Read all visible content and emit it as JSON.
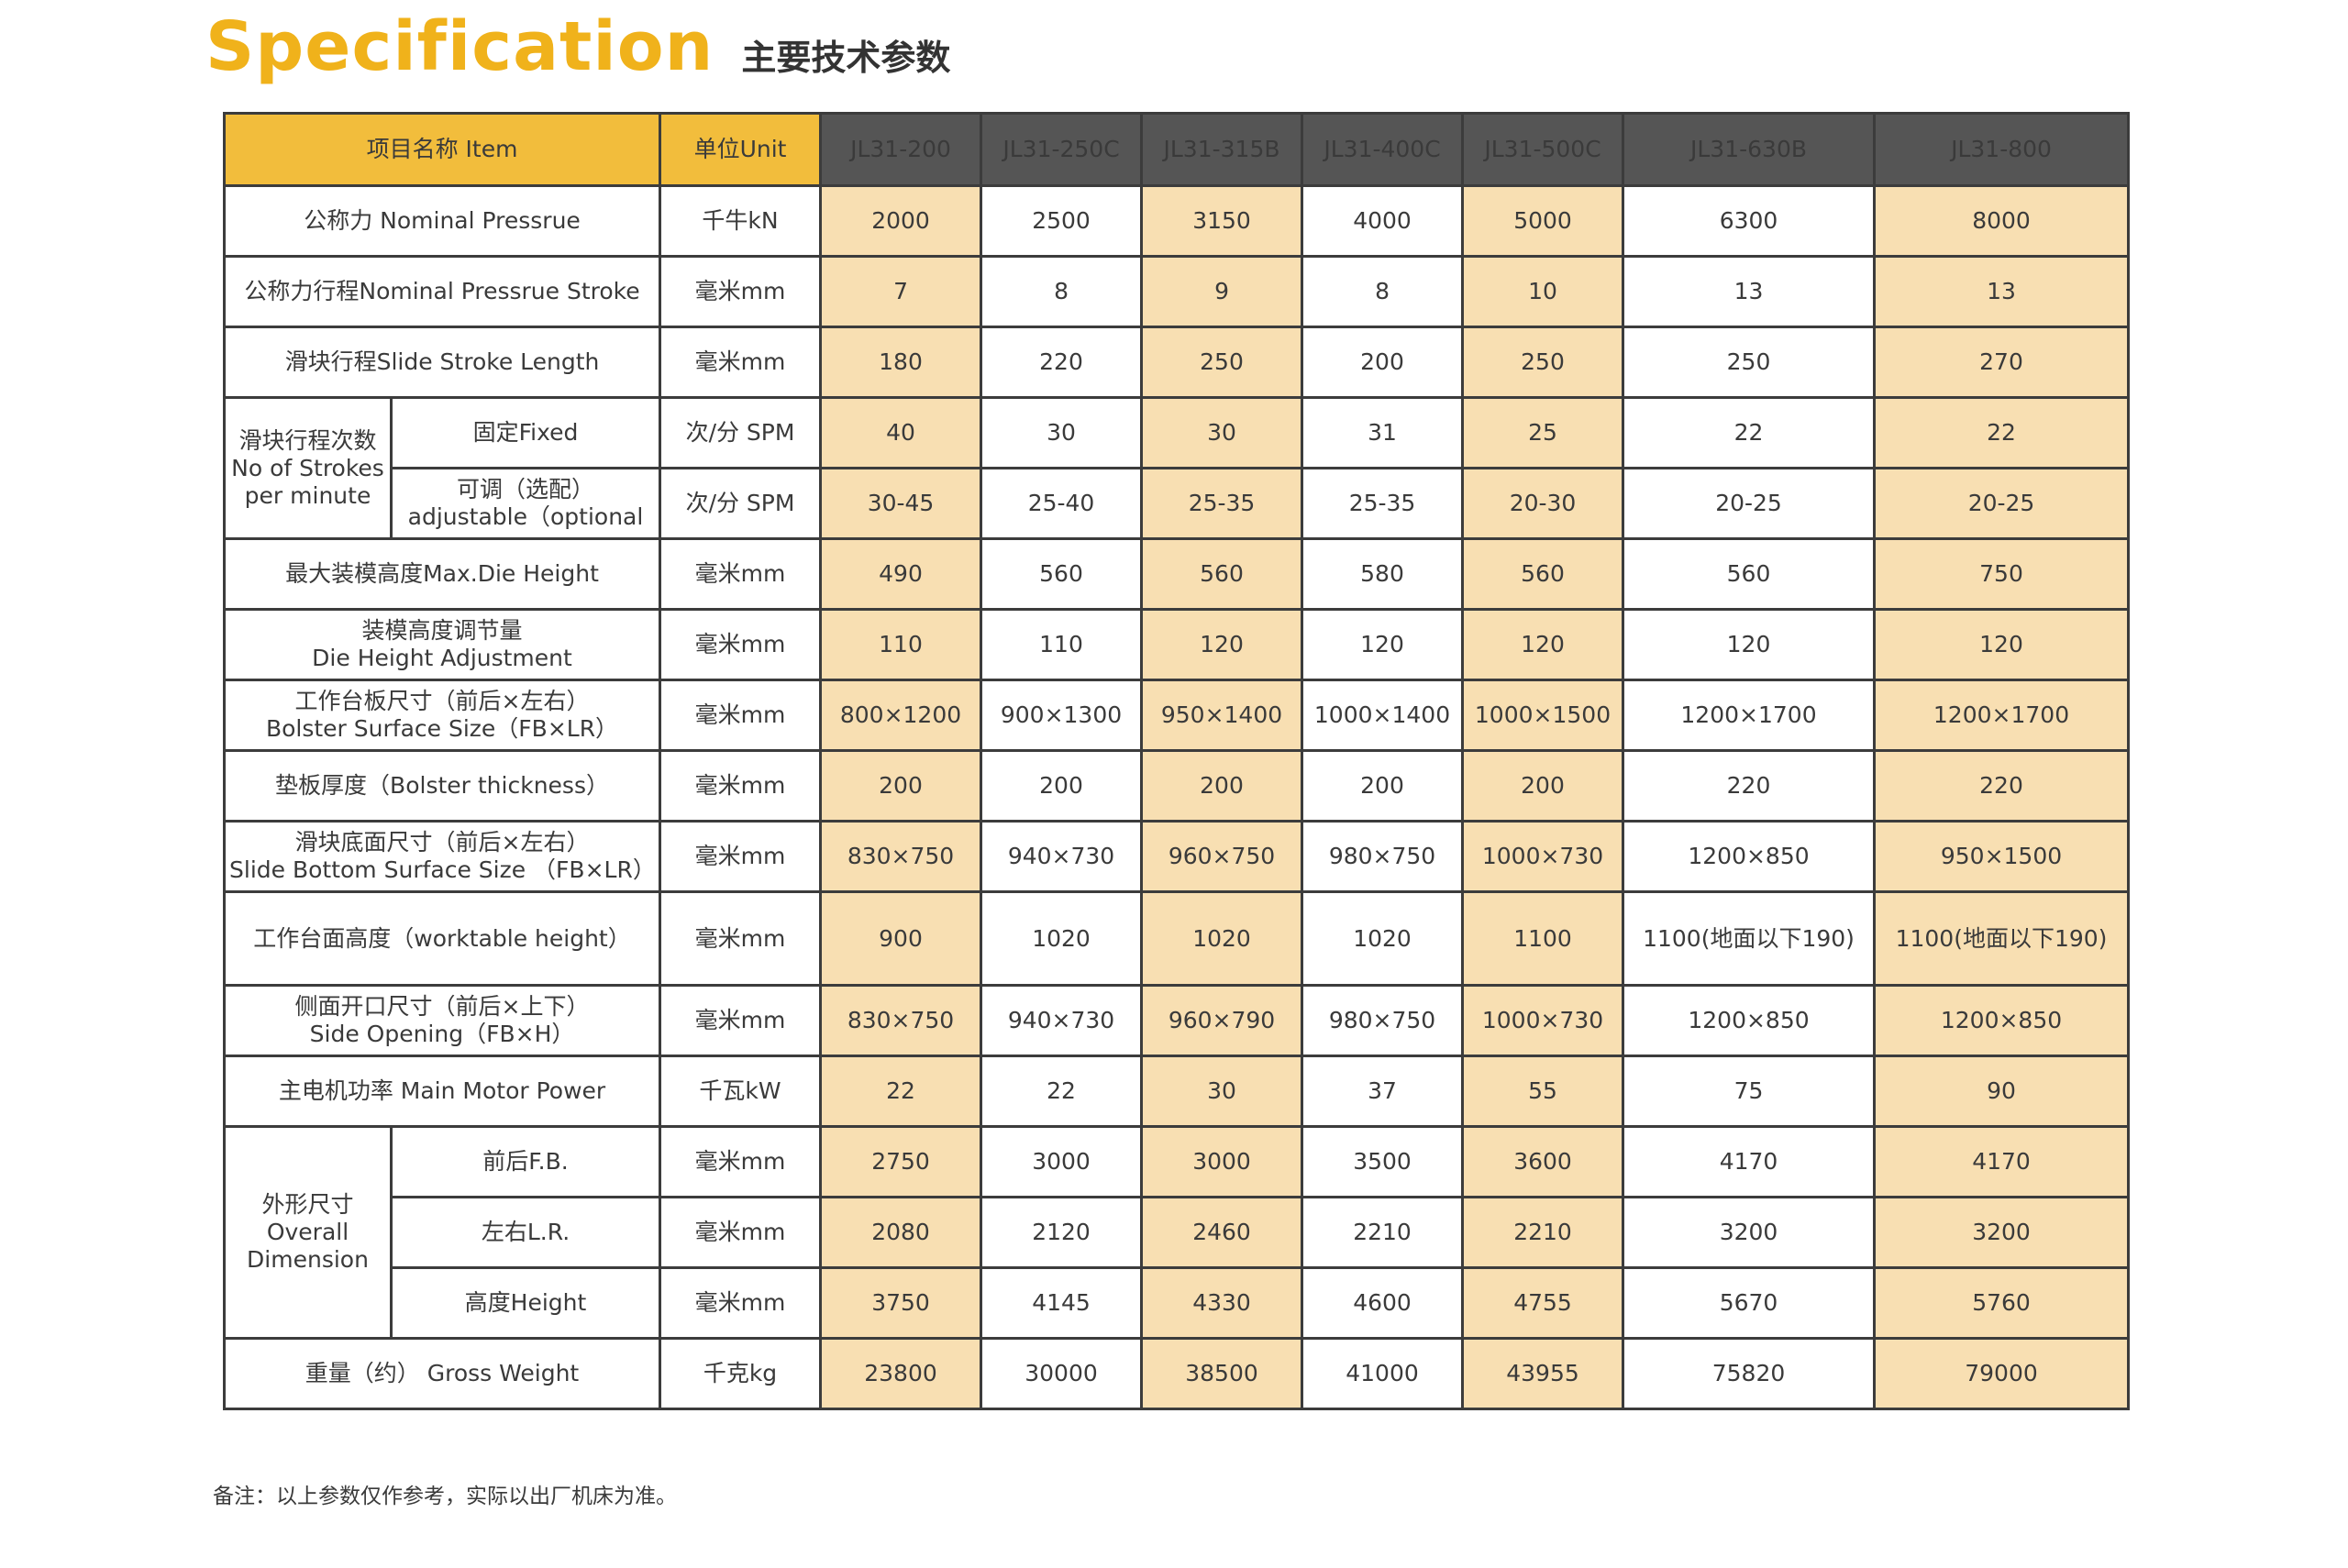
{
  "title": {
    "en": "Specification",
    "cn": "主要技术参数"
  },
  "colors": {
    "accent": "#f0b21b",
    "header_item": "#f2bd3c",
    "header_model": "#555555",
    "highlight": "#f8dfb2"
  },
  "header": {
    "item": "项目名称 Item",
    "unit": "单位Unit",
    "models": [
      "JL31-200",
      "JL31-250C",
      "JL31-315B",
      "JL31-400C",
      "JL31-500C",
      "JL31-630B",
      "JL31-800"
    ]
  },
  "rows": {
    "nominal_force": {
      "label": "公称力 Nominal Pressrue",
      "unit": "千牛kN",
      "values": [
        "2000",
        "2500",
        "3150",
        "4000",
        "5000",
        "6300",
        "8000"
      ]
    },
    "nominal_stroke": {
      "label": "公称力行程Nominal Pressrue Stroke",
      "unit": "毫米mm",
      "values": [
        "7",
        "8",
        "9",
        "8",
        "10",
        "13",
        "13"
      ]
    },
    "slide_stroke": {
      "label": "滑块行程Slide Stroke Length",
      "unit": "毫米mm",
      "values": [
        "180",
        "220",
        "250",
        "200",
        "250",
        "250",
        "270"
      ]
    },
    "strokes_per_minute": {
      "group_label": [
        "滑块行程次数",
        "No of Strokes",
        "per minute"
      ],
      "fixed": {
        "label": "固定Fixed",
        "unit": "次/分 SPM",
        "values": [
          "40",
          "30",
          "30",
          "31",
          "25",
          "22",
          "22"
        ]
      },
      "adjustable": {
        "label": [
          "可调（选配）",
          "adjustable（optional"
        ],
        "unit": "次/分 SPM",
        "values": [
          "30-45",
          "25-40",
          "25-35",
          "25-35",
          "20-30",
          "20-25",
          "20-25"
        ]
      }
    },
    "max_die_height": {
      "label": "最大装模高度Max.Die Height",
      "unit": "毫米mm",
      "values": [
        "490",
        "560",
        "560",
        "580",
        "560",
        "560",
        "750"
      ]
    },
    "die_height_adjustment": {
      "label": [
        "装模高度调节量",
        "Die Height Adjustment"
      ],
      "unit": "毫米mm",
      "values": [
        "110",
        "110",
        "120",
        "120",
        "120",
        "120",
        "120"
      ]
    },
    "bolster_size": {
      "label": [
        "工作台板尺寸（前后×左右）",
        "Bolster Surface Size（FB×LR）"
      ],
      "unit": "毫米mm",
      "values": [
        "800×1200",
        "900×1300",
        "950×1400",
        "1000×1400",
        "1000×1500",
        "1200×1700",
        "1200×1700"
      ]
    },
    "bolster_thickness": {
      "label": "垫板厚度（Bolster thickness）",
      "unit": "毫米mm",
      "values": [
        "200",
        "200",
        "200",
        "200",
        "200",
        "220",
        "220"
      ]
    },
    "slide_bottom_size": {
      "label": [
        "滑块底面尺寸（前后×左右）",
        "Slide Bottom Surface Size （FB×LR）"
      ],
      "unit": "毫米mm",
      "values": [
        "830×750",
        "940×730",
        "960×750",
        "980×750",
        "1000×730",
        "1200×850",
        "950×1500"
      ]
    },
    "worktable_height": {
      "label": "工作台面高度（worktable height）",
      "unit": "毫米mm",
      "values": [
        "900",
        "1020",
        "1020",
        "1020",
        "1100",
        "1100(地面以下190)",
        "1100(地面以下190)"
      ]
    },
    "side_opening": {
      "label": [
        "侧面开口尺寸（前后×上下）",
        "Side Opening（FB×H）"
      ],
      "unit": "毫米mm",
      "values": [
        "830×750",
        "940×730",
        "960×790",
        "980×750",
        "1000×730",
        "1200×850",
        "1200×850"
      ]
    },
    "main_motor_power": {
      "label": "主电机功率 Main Motor Power",
      "unit": "千瓦kW",
      "values": [
        "22",
        "22",
        "30",
        "37",
        "55",
        "75",
        "90"
      ]
    },
    "overall_dimension": {
      "group_label": [
        "外形尺寸",
        "Overall",
        "Dimension"
      ],
      "fb": {
        "label": "前后F.B.",
        "unit": "毫米mm",
        "values": [
          "2750",
          "3000",
          "3000",
          "3500",
          "3600",
          "4170",
          "4170"
        ]
      },
      "lr": {
        "label": "左右L.R.",
        "unit": "毫米mm",
        "values": [
          "2080",
          "2120",
          "2460",
          "2210",
          "2210",
          "3200",
          "3200"
        ]
      },
      "height": {
        "label": "高度Height",
        "unit": "毫米mm",
        "values": [
          "3750",
          "4145",
          "4330",
          "4600",
          "4755",
          "5670",
          "5760"
        ]
      }
    },
    "gross_weight": {
      "label": "重量（约） Gross Weight",
      "unit": "千克kg",
      "values": [
        "23800",
        "30000",
        "38500",
        "41000",
        "43955",
        "75820",
        "79000"
      ]
    }
  },
  "note": "备注：以上参数仅作参考，实际以出厂机床为准。"
}
